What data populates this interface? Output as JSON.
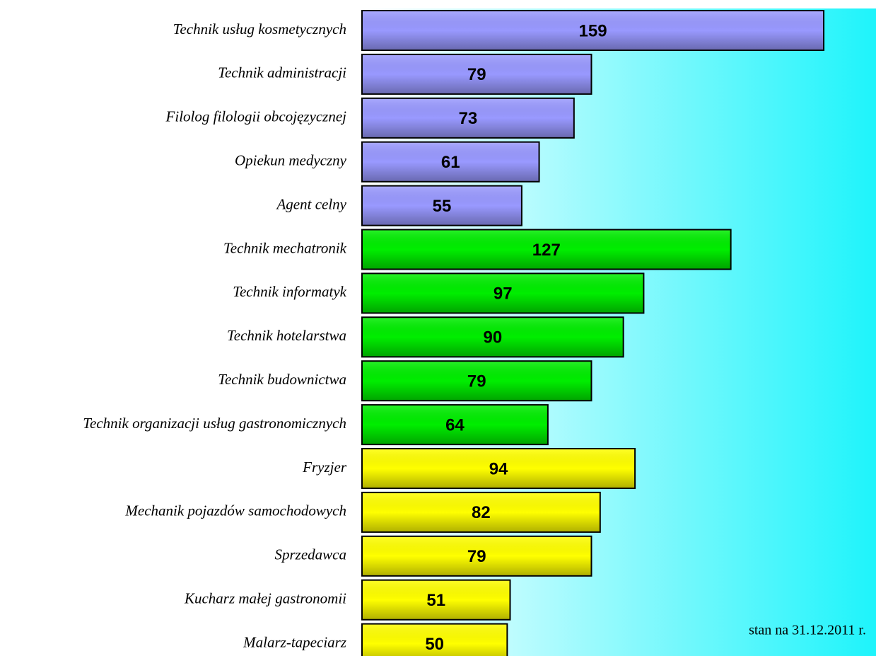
{
  "chart_data": {
    "type": "barh",
    "categories": [
      "Technik usług kosmetycznych",
      "Technik administracji",
      "Filolog filologii obcojęzycznej",
      "Opiekun medyczny",
      "Agent celny",
      "Technik mechatronik",
      "Technik informatyk",
      "Technik hotelarstwa",
      "Technik budownictwa",
      "Technik organizacji usług gastronomicznych",
      "Fryzjer",
      "Mechanik pojazdów samochodowych",
      "Sprzedawca",
      "Kucharz małej gastronomii",
      "Malarz-tapeciarz"
    ],
    "values": [
      159,
      79,
      73,
      61,
      55,
      127,
      97,
      90,
      79,
      64,
      94,
      82,
      79,
      51,
      50
    ],
    "colors": [
      "#9999ff",
      "#9999ff",
      "#9999ff",
      "#9999ff",
      "#9999ff",
      "#00ee00",
      "#00ee00",
      "#00ee00",
      "#00ee00",
      "#00ee00",
      "#ffff00",
      "#ffff00",
      "#ffff00",
      "#ffff00",
      "#ffff00"
    ],
    "xlim": [
      0,
      177
    ],
    "annotation": "stan na 31.12.2011 r."
  }
}
